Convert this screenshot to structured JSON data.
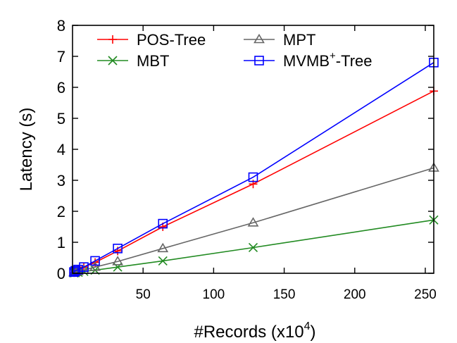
{
  "chart_data": {
    "type": "line",
    "title": "",
    "xlabel": "#Records (x10",
    "xlabel_sup": "4",
    "xlabel_end": ")",
    "ylabel": "Latency (s)",
    "xlim": [
      0,
      256
    ],
    "ylim": [
      0,
      8
    ],
    "x_ticks": [
      50,
      100,
      150,
      200,
      250
    ],
    "y_ticks": [
      0,
      1,
      2,
      3,
      4,
      5,
      6,
      7,
      8
    ],
    "grid": false,
    "legend_position": "top-left",
    "series": [
      {
        "name": "POS-Tree",
        "color": "#ff0000",
        "marker": "plus",
        "x": [
          1,
          2,
          4,
          8,
          16,
          32,
          64,
          128,
          256
        ],
        "y": [
          0.02,
          0.05,
          0.1,
          0.2,
          0.35,
          0.72,
          1.5,
          2.88,
          5.88
        ]
      },
      {
        "name": "MBT",
        "color": "#228b22",
        "marker": "cross",
        "x": [
          1,
          2,
          4,
          8,
          16,
          32,
          64,
          128,
          256
        ],
        "y": [
          0.01,
          0.02,
          0.03,
          0.06,
          0.1,
          0.2,
          0.4,
          0.83,
          1.72
        ]
      },
      {
        "name": "MPT",
        "color": "#666666",
        "marker": "triangle",
        "x": [
          1,
          2,
          4,
          8,
          16,
          32,
          64,
          128,
          256
        ],
        "y": [
          0.02,
          0.03,
          0.06,
          0.1,
          0.2,
          0.38,
          0.8,
          1.63,
          3.4
        ]
      },
      {
        "name": "MVMB",
        "name_sup": "+",
        "name_end": "-Tree",
        "color": "#0000ff",
        "marker": "square",
        "x": [
          1,
          2,
          4,
          8,
          16,
          32,
          64,
          128,
          256
        ],
        "y": [
          0.04,
          0.08,
          0.12,
          0.2,
          0.4,
          0.8,
          1.6,
          3.1,
          6.8
        ]
      }
    ]
  }
}
